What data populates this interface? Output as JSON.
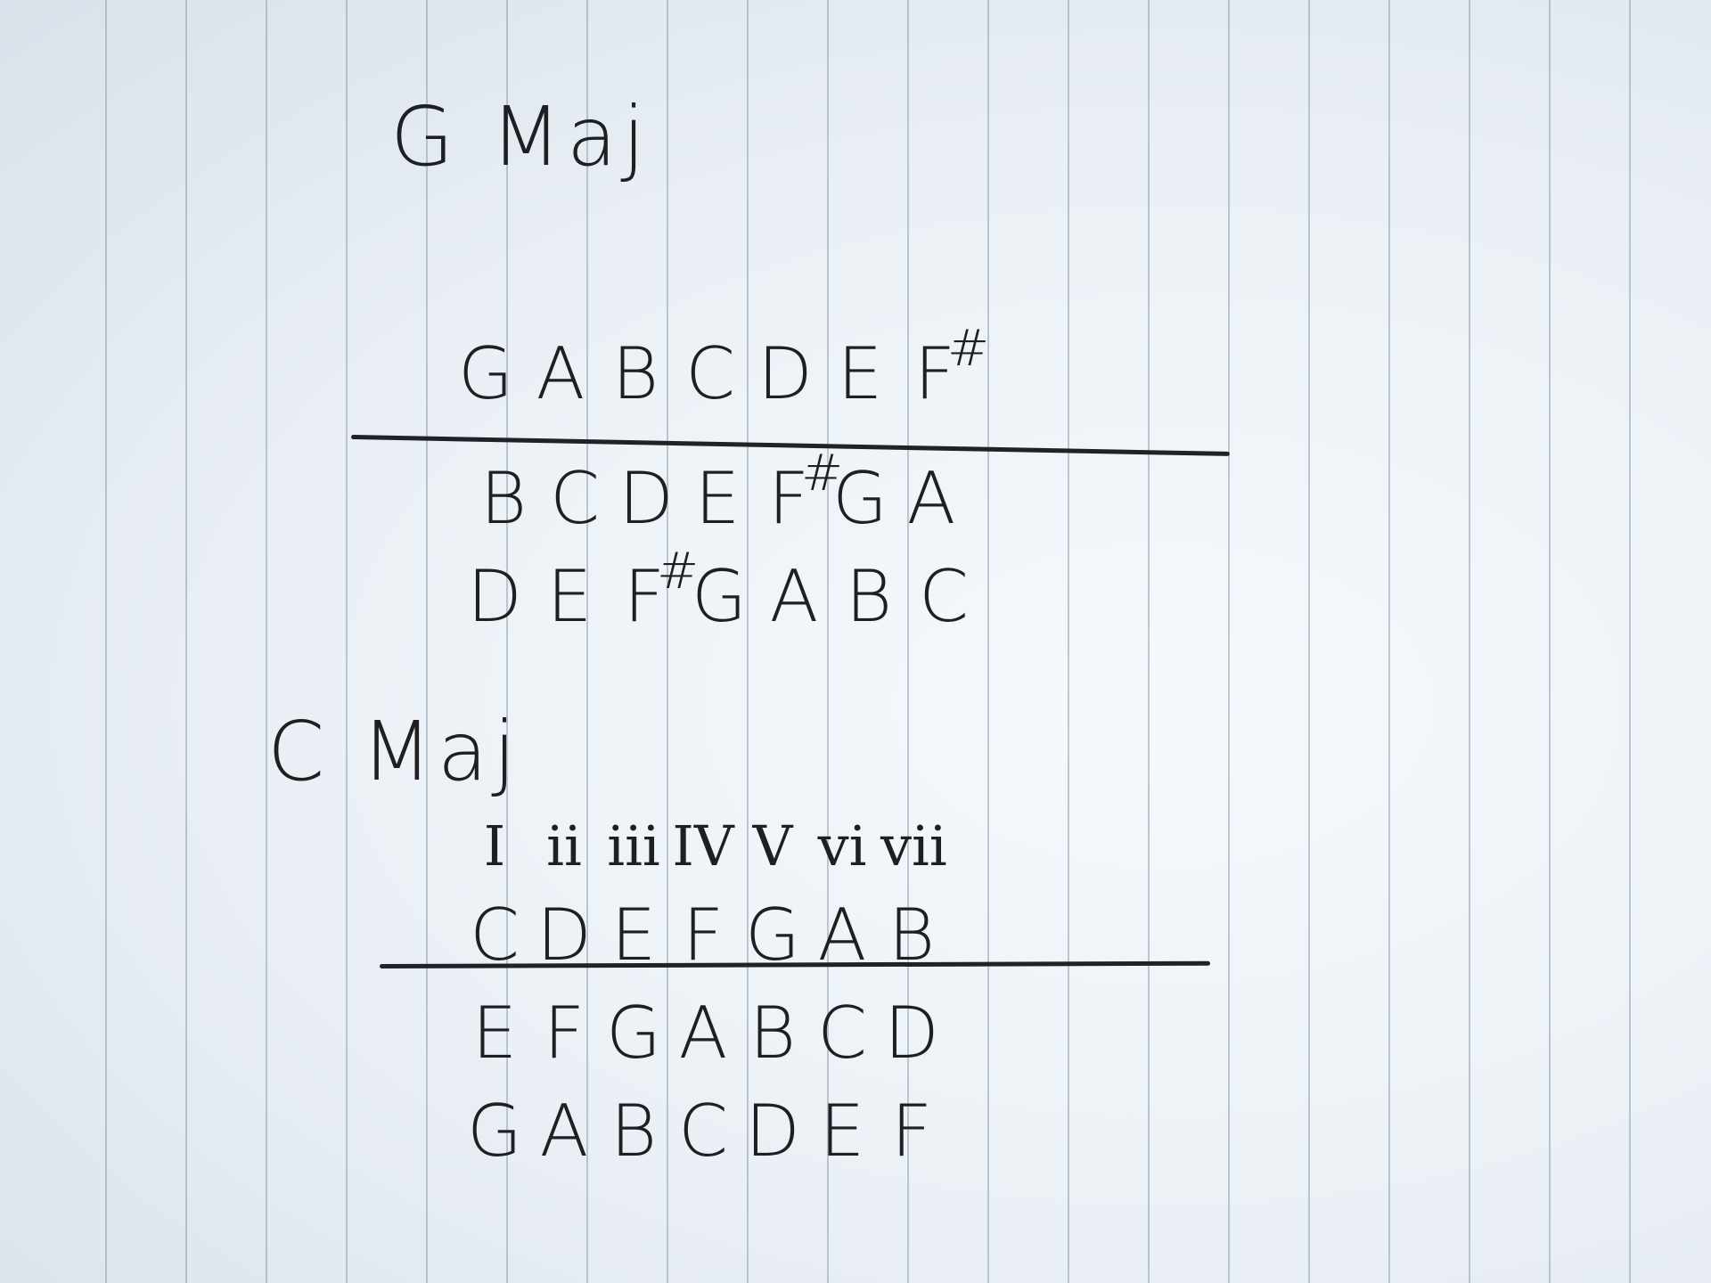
{
  "g_major": {
    "title": "G Maj",
    "scale": [
      {
        "label": "G"
      },
      {
        "label": "A"
      },
      {
        "label": "B"
      },
      {
        "label": "C"
      },
      {
        "label": "D"
      },
      {
        "label": "E"
      },
      {
        "label": "F",
        "sharp": "#"
      }
    ],
    "thirds": [
      {
        "label": "B"
      },
      {
        "label": "C"
      },
      {
        "label": "D"
      },
      {
        "label": "E"
      },
      {
        "label": "F",
        "sharp": "#"
      },
      {
        "label": "G"
      },
      {
        "label": "A"
      }
    ],
    "fifths": [
      {
        "label": "D"
      },
      {
        "label": "E"
      },
      {
        "label": "F",
        "sharp": "#"
      },
      {
        "label": "G"
      },
      {
        "label": "A"
      },
      {
        "label": "B"
      },
      {
        "label": "C"
      }
    ]
  },
  "c_major": {
    "title": "C Maj",
    "numerals": [
      "I",
      "ii",
      "iii",
      "IV",
      "V",
      "vi",
      "vii"
    ],
    "scale": [
      {
        "label": "C"
      },
      {
        "label": "D"
      },
      {
        "label": "E"
      },
      {
        "label": "F"
      },
      {
        "label": "G"
      },
      {
        "label": "A"
      },
      {
        "label": "B"
      }
    ],
    "thirds": [
      {
        "label": "E"
      },
      {
        "label": "F"
      },
      {
        "label": "G"
      },
      {
        "label": "A"
      },
      {
        "label": "B"
      },
      {
        "label": "C"
      },
      {
        "label": "D"
      }
    ],
    "fifths": [
      {
        "label": "G"
      },
      {
        "label": "A"
      },
      {
        "label": "B"
      },
      {
        "label": "C"
      },
      {
        "label": "D"
      },
      {
        "label": "E"
      },
      {
        "label": "F"
      }
    ]
  },
  "colors": {
    "ink": "#1d1f22",
    "ruling": "#8ca0b4",
    "paper": "#f6f9fc"
  }
}
